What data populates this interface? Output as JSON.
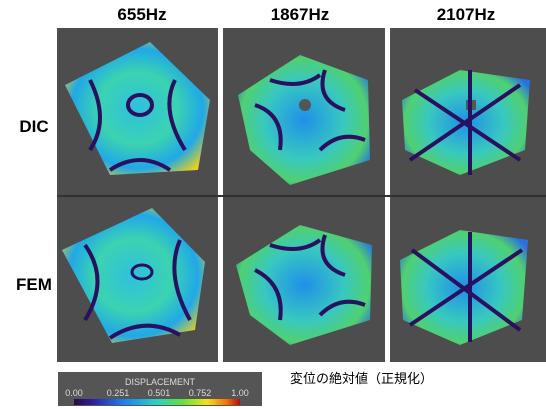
{
  "columns": [
    "655Hz",
    "1867Hz",
    "2107Hz"
  ],
  "rows": [
    "DIC",
    "FEM"
  ],
  "colorbar": {
    "title": "DISPLACEMENT",
    "ticks": [
      "0.00",
      "0.251",
      "0.501",
      "0.752",
      "1.00"
    ]
  },
  "caption": "変位の絶対値（正規化）"
}
